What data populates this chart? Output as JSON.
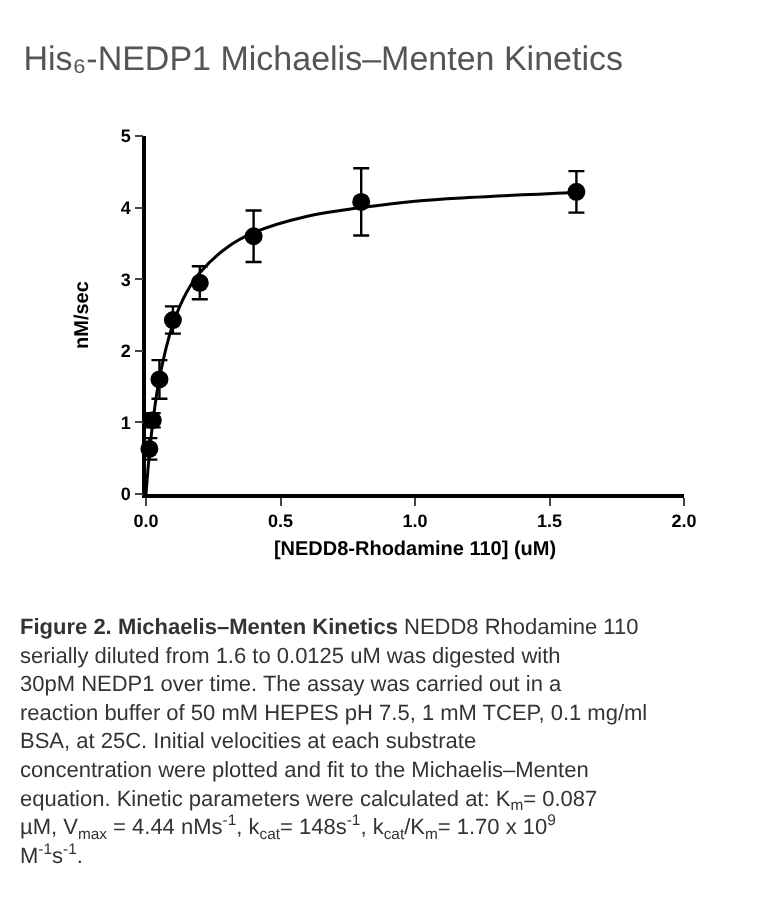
{
  "chart_data": {
    "type": "scatter",
    "title": "His₆-NEDP1 Michaelis–Menten Kinetics",
    "xlabel": "[NEDD8-Rhodamine 110] (uM)",
    "ylabel": "nM/sec",
    "x": [
      0.0125,
      0.025,
      0.05,
      0.1,
      0.2,
      0.4,
      0.8,
      1.6
    ],
    "series": [
      {
        "color": "#000000",
        "marker": "circle",
        "values": [
          0.63,
          1.03,
          1.6,
          2.43,
          2.95,
          3.6,
          4.08,
          4.22
        ],
        "errors": [
          0.15,
          0.1,
          0.27,
          0.19,
          0.23,
          0.36,
          0.47,
          0.29
        ]
      },
      {
        "type": "line",
        "marker": "none",
        "color": "#000000",
        "x": [
          0,
          0.01,
          0.025,
          0.05,
          0.1,
          0.15,
          0.2,
          0.3,
          0.4,
          0.6,
          0.8,
          1.0,
          1.2,
          1.6
        ],
        "values": [
          0,
          0.46,
          0.99,
          1.62,
          2.37,
          2.81,
          3.09,
          3.44,
          3.65,
          3.88,
          4.0,
          4.09,
          4.14,
          4.21
        ]
      }
    ],
    "xlim": [
      0,
      2.0
    ],
    "xticks": [
      {
        "value": 0,
        "label": "0.0"
      },
      0.5,
      {
        "value": 1,
        "label": "1.0"
      },
      1.5,
      {
        "value": 2,
        "label": "2.0"
      }
    ],
    "ylim": [
      0,
      5
    ],
    "yticks": [
      0,
      1,
      2,
      3,
      4,
      5
    ],
    "legend": false,
    "line_style": "solid",
    "annotations": [
      "Figure 2. Michaelis–Menten Kinetics",
      "NEDD8 Rhodamine 110 serially diluted from 1.6 to 0.0125 uM was digested with 30pM NEDP1 over time. The assay was carried out in a reaction buffer of 50 mM HEPES pH 7.5, 1 mM TCEP, 0.1 mg/ml BSA, at 25C. Initial velocities at each substrate concentration were plotted and fit to the Michaelis–Menten equation. Kinetic parameters were calculated at: K$_{m}$= 0.087 µM, V$_{max}$ = 4.44 nMs$^{-1}$, k$_{cat}$= 148s$^{-1}$, k$_{cat}$/K$_{m}$= 1.70 x 10$^{9}$ M$^{-1}$s$^{-1}$."
    ]
  }
}
